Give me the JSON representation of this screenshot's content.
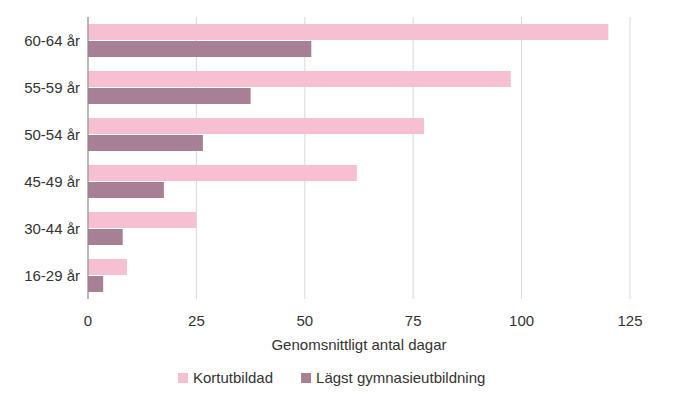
{
  "chart_data": {
    "type": "bar",
    "orientation": "horizontal",
    "categories": [
      "60-64 år",
      "55-59 år",
      "50-54 år",
      "45-49 år",
      "30-44 år",
      "16-29 år"
    ],
    "series": [
      {
        "name": "Kortutbildad",
        "color": "#f7bfd2",
        "values": [
          120,
          97.5,
          77.5,
          62,
          25,
          9
        ]
      },
      {
        "name": "Lägst gymnasieutbildning",
        "color": "#a88096",
        "values": [
          51.5,
          37.5,
          26.5,
          17.5,
          8,
          3.5
        ]
      }
    ],
    "x_label": "Genomsnittligt antal dagar",
    "xlim": [
      0,
      125
    ],
    "xticks": [
      0,
      25,
      50,
      75,
      100,
      125
    ],
    "grid": true,
    "legend": "bottom"
  }
}
